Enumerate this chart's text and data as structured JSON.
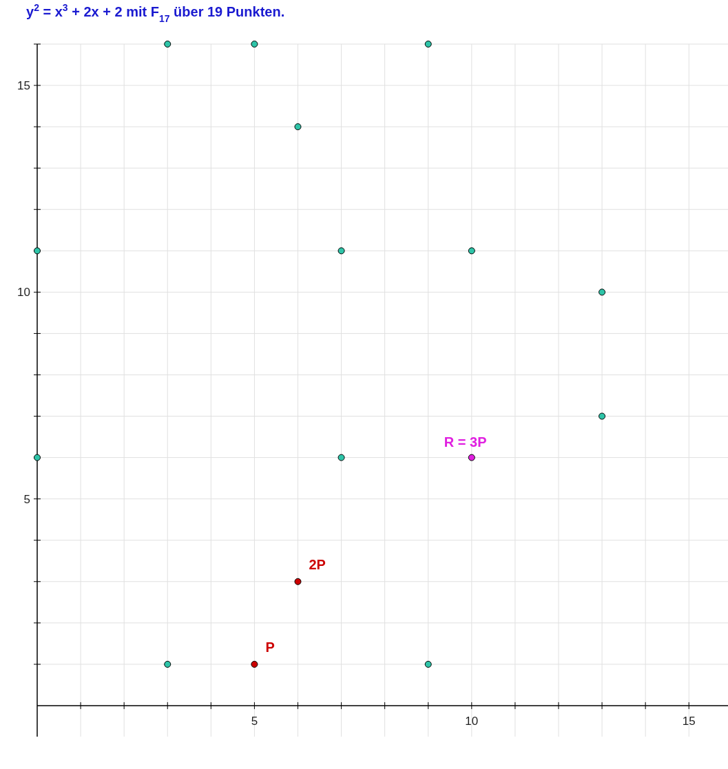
{
  "chart_data": {
    "type": "scatter",
    "title": "y$^{2}$ = x$^{3}$ + 2x + 2 mit F$_{17}$ über 19 Punkten.",
    "xlim": [
      0,
      15.9
    ],
    "ylim": [
      -0.75,
      16
    ],
    "xticks": [
      {
        "value": 1,
        "label": null
      },
      {
        "value": 2,
        "label": null
      },
      {
        "value": 3,
        "label": null
      },
      {
        "value": 4,
        "label": null
      },
      5,
      {
        "value": 6,
        "label": null
      },
      {
        "value": 7,
        "label": null
      },
      {
        "value": 8,
        "label": null
      },
      {
        "value": 9,
        "label": null
      },
      10,
      {
        "value": 11,
        "label": null
      },
      {
        "value": 12,
        "label": null
      },
      {
        "value": 13,
        "label": null
      },
      {
        "value": 14,
        "label": null
      },
      15
    ],
    "yticks": [
      {
        "value": 1,
        "label": null
      },
      {
        "value": 2,
        "label": null
      },
      {
        "value": 3,
        "label": null
      },
      {
        "value": 4,
        "label": null
      },
      5,
      {
        "value": 6,
        "label": null
      },
      {
        "value": 7,
        "label": null
      },
      {
        "value": 8,
        "label": null
      },
      {
        "value": 9,
        "label": null
      },
      10,
      {
        "value": 11,
        "label": null
      },
      {
        "value": 12,
        "label": null
      },
      {
        "value": 13,
        "label": null
      },
      {
        "value": 14,
        "label": null
      },
      15,
      {
        "value": 16,
        "label": null
      }
    ],
    "grid": true,
    "marker": "circle",
    "series": [
      {
        "color": "#2ec4a8",
        "x": [
          0,
          0,
          3,
          3,
          5,
          6,
          7,
          7,
          9,
          9,
          10,
          13,
          13
        ],
        "values": [
          6,
          11,
          1,
          16,
          16,
          14,
          6,
          11,
          1,
          16,
          11,
          7,
          10
        ]
      },
      {
        "name": "P",
        "color": "#cc0000",
        "x": [
          5
        ],
        "values": [
          1
        ]
      },
      {
        "name": "2P",
        "color": "#cc0000",
        "x": [
          6
        ],
        "values": [
          3
        ]
      },
      {
        "name": "R = 3P",
        "color": "#e020e0",
        "x": [
          10
        ],
        "values": [
          6
        ]
      }
    ]
  }
}
